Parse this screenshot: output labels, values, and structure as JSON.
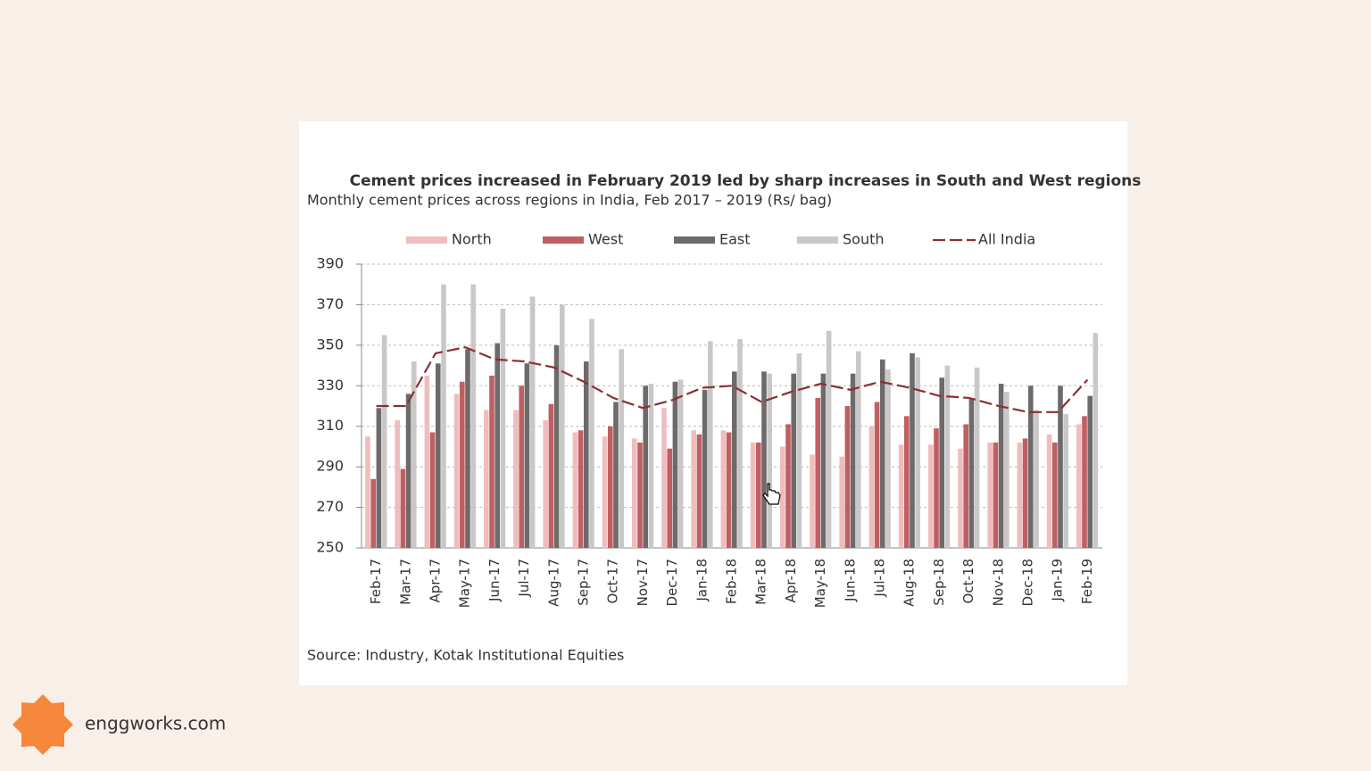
{
  "chart_data": {
    "type": "bar",
    "title": "Cement prices increased in February 2019 led by sharp increases in South and West regions",
    "subtitle": "Monthly cement prices across regions in India, Feb 2017 – 2019 (Rs/ bag)",
    "source": "Source: Industry, Kotak Institutional Equities",
    "categories": [
      "Feb-17",
      "Mar-17",
      "Apr-17",
      "May-17",
      "Jun-17",
      "Jul-17",
      "Aug-17",
      "Sep-17",
      "Oct-17",
      "Nov-17",
      "Dec-17",
      "Jan-18",
      "Feb-18",
      "Mar-18",
      "Apr-18",
      "May-18",
      "Jun-18",
      "Jul-18",
      "Aug-18",
      "Sep-18",
      "Oct-18",
      "Nov-18",
      "Dec-18",
      "Jan-19",
      "Feb-19"
    ],
    "series": [
      {
        "name": "North",
        "color": "#efbdbd",
        "mark": "bar",
        "values": [
          305,
          313,
          335,
          326,
          318,
          318,
          313,
          307,
          305,
          304,
          319,
          308,
          308,
          302,
          300,
          296,
          295,
          310,
          301,
          301,
          299,
          302,
          302,
          306,
          311
        ]
      },
      {
        "name": "West",
        "color": "#c05f63",
        "mark": "bar",
        "values": [
          284,
          289,
          307,
          332,
          335,
          330,
          321,
          308,
          310,
          302,
          299,
          306,
          307,
          302,
          311,
          324,
          320,
          322,
          315,
          309,
          311,
          302,
          304,
          302,
          315
        ]
      },
      {
        "name": "East",
        "color": "#6e6a6a",
        "mark": "bar",
        "values": [
          319,
          326,
          341,
          348,
          351,
          341,
          350,
          342,
          322,
          330,
          332,
          328,
          337,
          337,
          336,
          336,
          336,
          343,
          346,
          334,
          324,
          331,
          330,
          330,
          325
        ]
      },
      {
        "name": "South",
        "color": "#c9c7c7",
        "mark": "bar",
        "values": [
          355,
          342,
          380,
          380,
          368,
          374,
          370,
          363,
          348,
          331,
          333,
          352,
          353,
          336,
          346,
          357,
          347,
          338,
          344,
          340,
          339,
          327,
          318,
          316,
          356
        ]
      },
      {
        "name": "All India",
        "color": "#8b2f35",
        "mark": "dashed-line",
        "values": [
          320,
          320,
          346,
          349,
          343,
          342,
          339,
          332,
          324,
          319,
          323,
          329,
          330,
          322,
          327,
          331,
          328,
          332,
          329,
          325,
          324,
          320,
          317,
          317,
          333
        ]
      }
    ],
    "ylim": [
      250,
      390
    ],
    "yticks": [
      250,
      270,
      290,
      310,
      330,
      350,
      370,
      390
    ],
    "grid": true
  },
  "brand": "enggworks.com"
}
